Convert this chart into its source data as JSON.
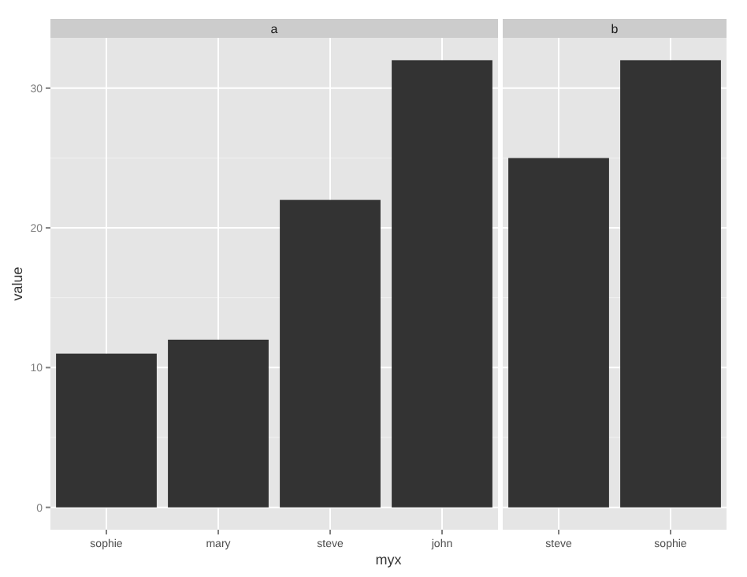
{
  "chart_data": [
    {
      "type": "bar",
      "title": "a",
      "xlabel": "myx",
      "ylabel": "value",
      "categories": [
        "sophie",
        "mary",
        "steve",
        "john"
      ],
      "values": [
        11,
        12,
        22,
        32
      ],
      "color": "#333333",
      "ylim": [
        -1.6,
        33.6
      ],
      "yticks": [
        0,
        10,
        20,
        30
      ],
      "grid": true
    },
    {
      "type": "bar",
      "title": "b",
      "categories": [
        "steve",
        "sophie"
      ],
      "values": [
        25,
        32
      ],
      "color": "#333333",
      "ylim": [
        -1.6,
        33.6
      ],
      "yticks": [
        0,
        10,
        20,
        30
      ],
      "grid": true,
      "tick_labels": "x"
    }
  ]
}
